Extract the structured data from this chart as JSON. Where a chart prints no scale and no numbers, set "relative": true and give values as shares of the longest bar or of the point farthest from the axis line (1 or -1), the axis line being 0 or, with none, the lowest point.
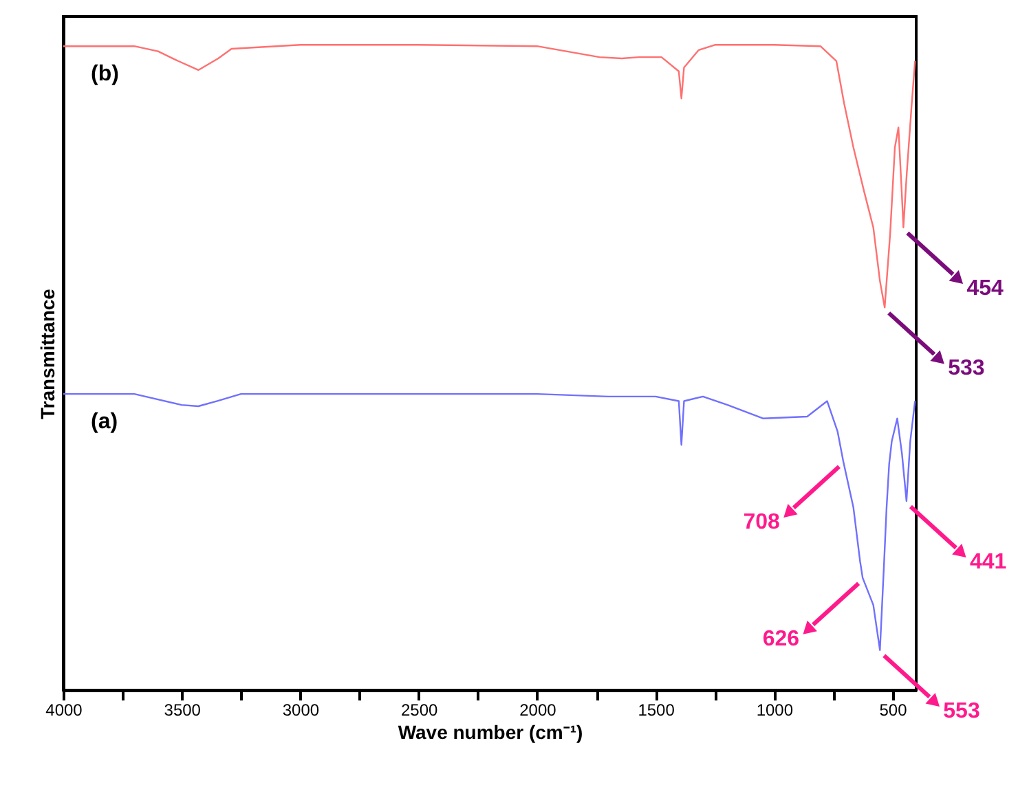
{
  "chart_data": {
    "type": "line",
    "relative": true,
    "xlabel": "Wave number (cm⁻¹)",
    "ylabel": "Transmittance",
    "xlim": [
      4000,
      400
    ],
    "xticks": [
      4000,
      {
        "value": 3750,
        "label": null
      },
      3500,
      {
        "value": 3250,
        "label": null
      },
      3000,
      {
        "value": 2750,
        "label": null
      },
      2500,
      {
        "value": 2250,
        "label": null
      },
      2000,
      {
        "value": 1750,
        "label": null
      },
      1500,
      {
        "value": 1250,
        "label": null
      },
      1000,
      {
        "value": 750,
        "label": null
      },
      500
    ],
    "grid": false,
    "marker": "none",
    "line_style": "solid",
    "series": [
      {
        "name": "(b)",
        "color": "#ff7070",
        "x": [
          4000,
          3700,
          3600,
          3515,
          3430,
          3346,
          3290,
          3000,
          2500,
          2000,
          1737,
          1643,
          1570,
          1475,
          1402,
          1391,
          1380,
          1318,
          1250,
          1000,
          804,
          737,
          704,
          665,
          620,
          581,
          553,
          533,
          510,
          490,
          475,
          462,
          454,
          440,
          420,
          405
        ],
        "values": [
          0.998,
          0.998,
          0.99,
          0.975,
          0.961,
          0.979,
          0.994,
          1.0,
          1.0,
          0.998,
          0.981,
          0.979,
          0.981,
          0.981,
          0.959,
          0.917,
          0.965,
          0.992,
          1.0,
          1.0,
          0.998,
          0.975,
          0.909,
          0.841,
          0.773,
          0.717,
          0.634,
          0.593,
          0.707,
          0.841,
          0.872,
          0.779,
          0.717,
          0.8,
          0.903,
          0.975
        ]
      },
      {
        "name": "(a)",
        "color": "#7070ff",
        "x": [
          4000,
          3700,
          3500,
          3430,
          3350,
          3250,
          2000,
          1700,
          1500,
          1402,
          1391,
          1380,
          1300,
          1196,
          1045,
          860,
          776,
          732,
          708,
          665,
          637,
          626,
          581,
          553,
          536,
          525,
          514,
          503,
          480,
          460,
          441,
          425,
          405
        ],
        "values": [
          0.459,
          0.459,
          0.442,
          0.44,
          0.448,
          0.459,
          0.459,
          0.455,
          0.455,
          0.448,
          0.38,
          0.448,
          0.455,
          0.442,
          0.421,
          0.424,
          0.448,
          0.401,
          0.355,
          0.283,
          0.2,
          0.174,
          0.132,
          0.062,
          0.194,
          0.283,
          0.351,
          0.386,
          0.421,
          0.366,
          0.293,
          0.386,
          0.448
        ]
      }
    ],
    "annotations": [
      {
        "text": "454",
        "x": 454,
        "y": 0.717
      },
      {
        "text": "533",
        "x": 533,
        "y": 0.593
      },
      {
        "text": "708",
        "x": 708,
        "y": 0.355
      },
      {
        "text": "441",
        "x": 441,
        "y": 0.293
      },
      {
        "text": "626",
        "x": 626,
        "y": 0.174
      },
      {
        "text": "553",
        "x": 553,
        "y": 0.062
      }
    ]
  }
}
